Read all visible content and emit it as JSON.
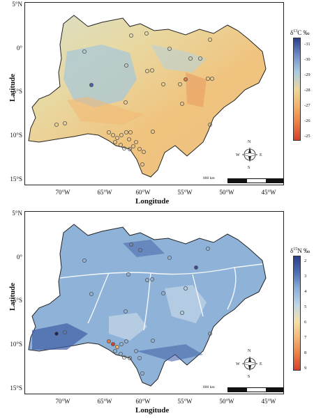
{
  "panels": [
    {
      "id": "carbon",
      "lat_ticks": [
        "5°N",
        "0°",
        "5°S",
        "10°S",
        "15°S"
      ],
      "lon_ticks": [
        "70°W",
        "65°W",
        "60°W",
        "55°W",
        "50°W",
        "45°W"
      ],
      "ylabel": "Latitude",
      "xlabel": "Longitude",
      "legend_title_pre": "δ",
      "legend_title_sup": "13",
      "legend_title_post": "C ‰",
      "legend_ticks": [
        "-31",
        "-30",
        "-29",
        "-28",
        "-27",
        "-26",
        "-25"
      ],
      "legend_colors": [
        "#2c3e8c",
        "#6f8fc7",
        "#a9cce0",
        "#ecd79a",
        "#f3b26b",
        "#ee7d43",
        "#d7402a"
      ],
      "scale_label": "800 km",
      "compass": {
        "n": "N",
        "s": "S",
        "e": "E",
        "w": "W"
      }
    },
    {
      "id": "nitrogen",
      "lat_ticks": [
        "5°N",
        "0°",
        "5°S",
        "10°S",
        "15°S"
      ],
      "lon_ticks": [
        "70°W",
        "65°W",
        "60°W",
        "55°W",
        "50°W",
        "45°W"
      ],
      "ylabel": "Latitude",
      "xlabel": "Longitude",
      "legend_title_pre": "δ",
      "legend_title_sup": "15",
      "legend_title_post": "N ‰",
      "legend_ticks": [
        "2",
        "3",
        "4",
        "5",
        "6",
        "7",
        "8",
        "9"
      ],
      "legend_colors": [
        "#2c3e8c",
        "#4d6fb8",
        "#8ab1d9",
        "#c0d6e8",
        "#f4e0a8",
        "#f5b774",
        "#ec7f45",
        "#d7402a"
      ],
      "scale_label": "800 km",
      "compass": {
        "n": "N",
        "s": "S",
        "e": "E",
        "w": "W"
      }
    }
  ]
}
